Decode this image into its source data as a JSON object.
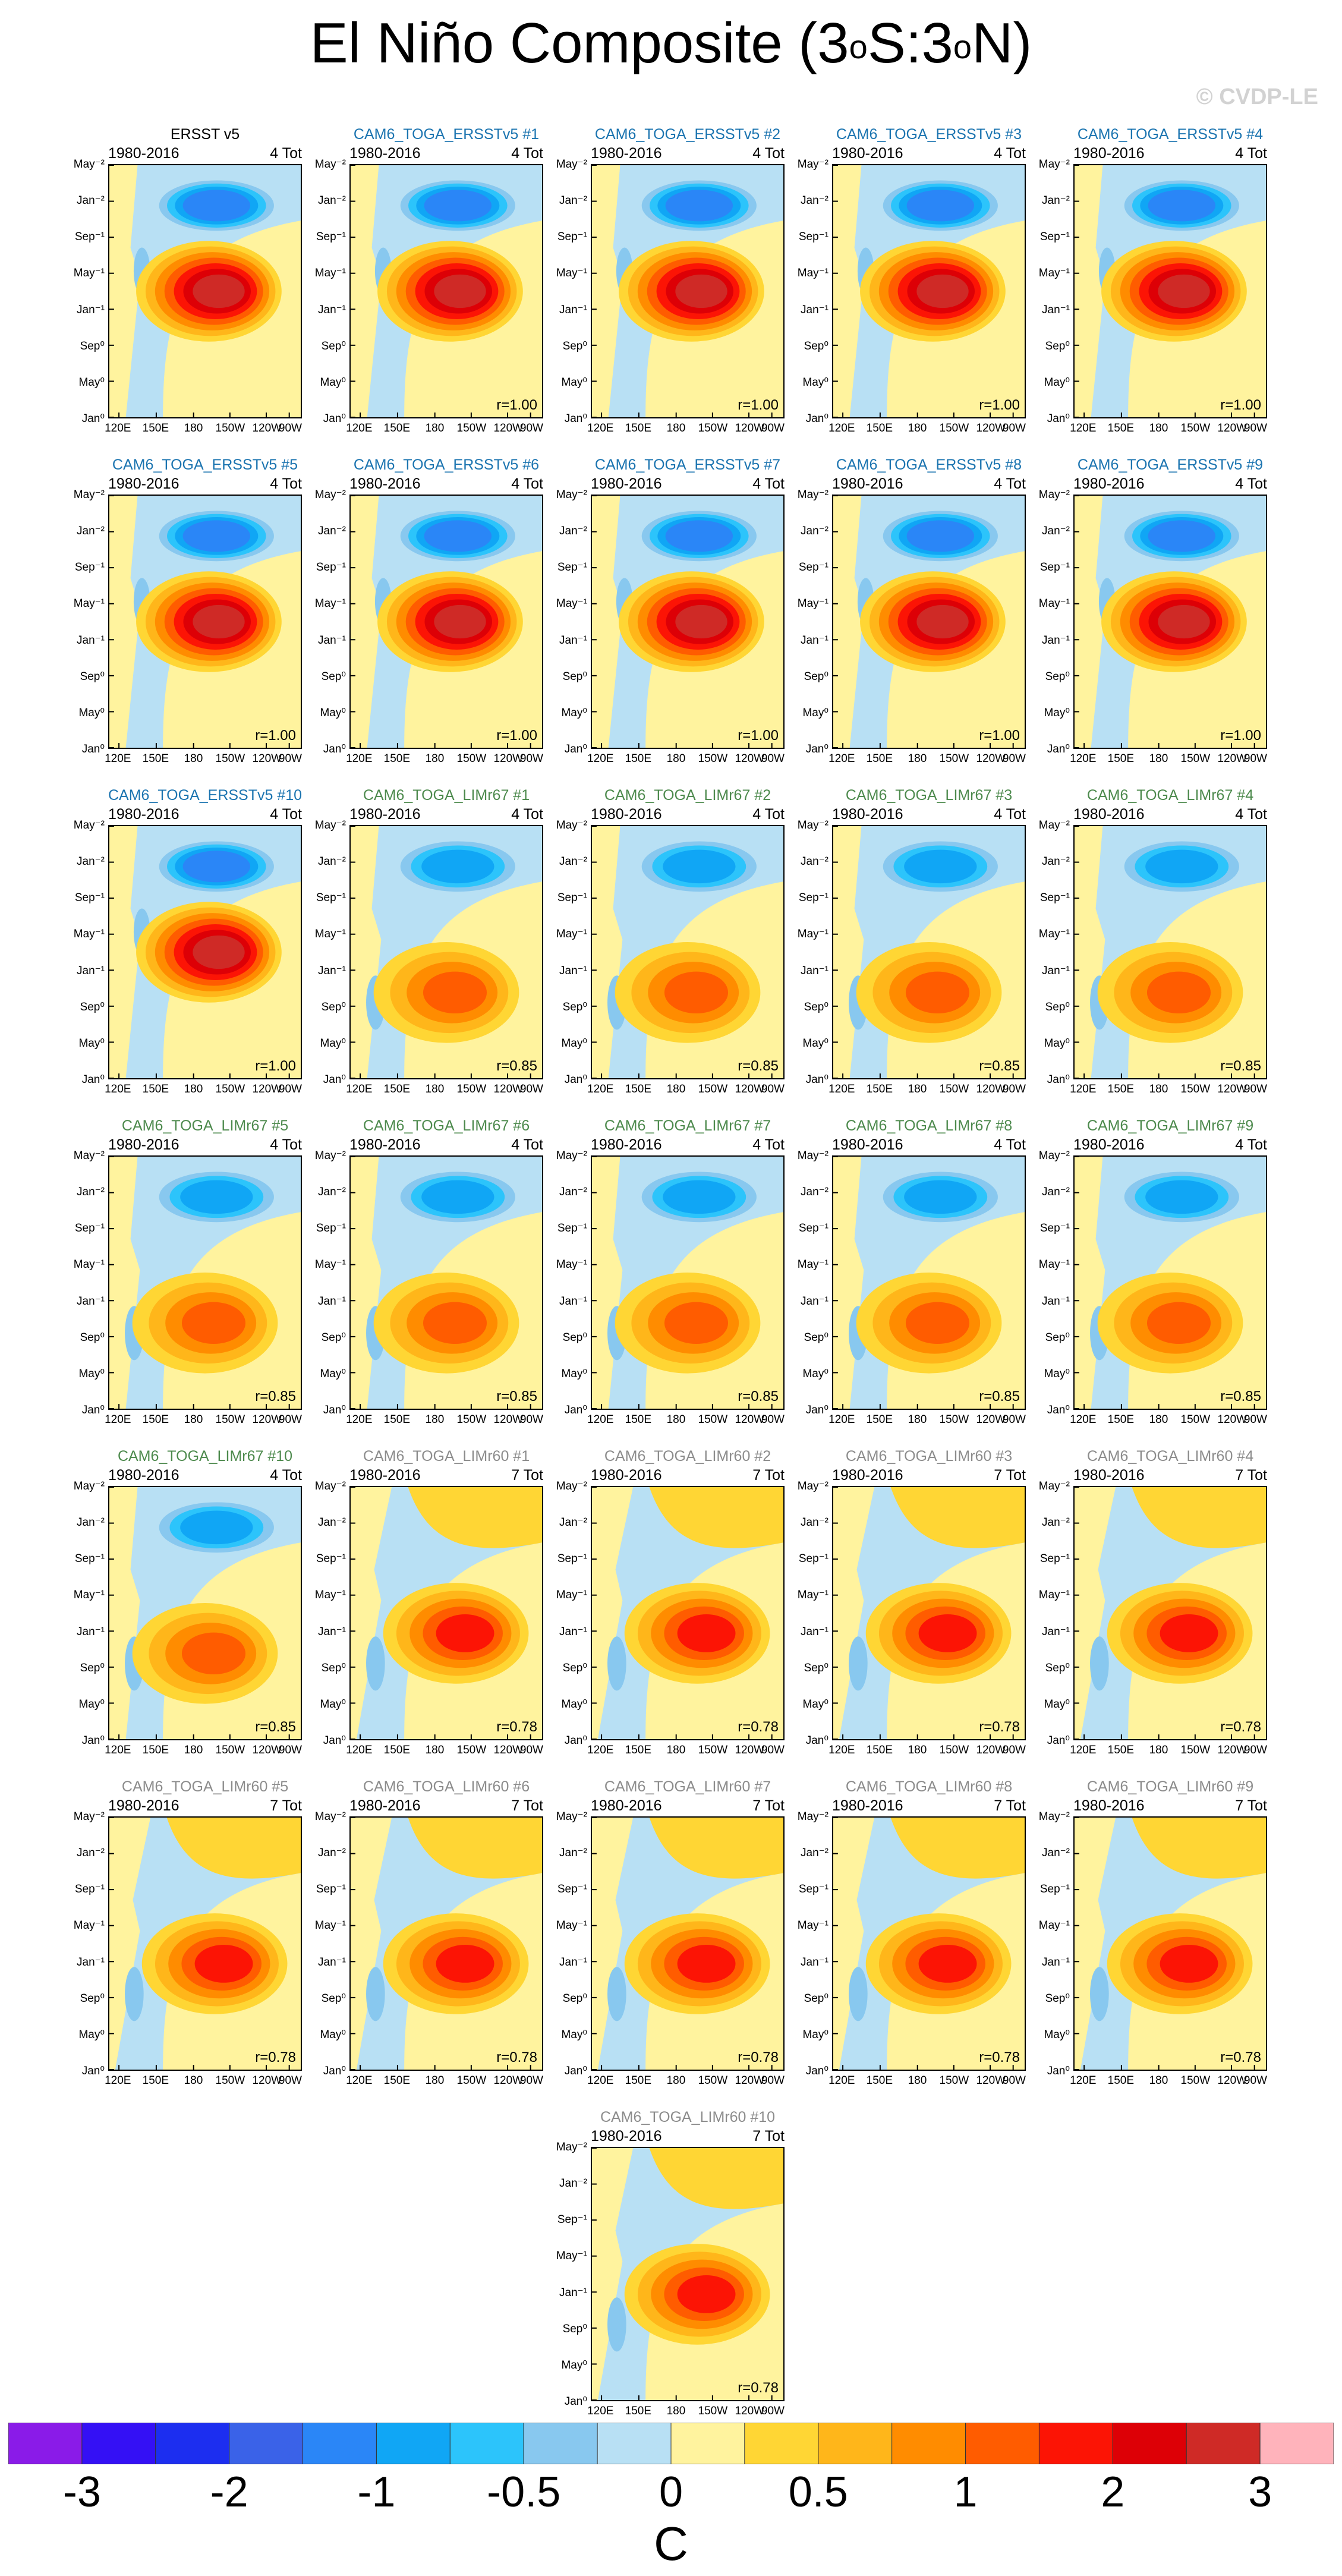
{
  "figure": {
    "title_main": "El Niño Composite (3",
    "title_sup1": "o",
    "title_mid": "S:3",
    "title_sup2": "o",
    "title_end": "N)",
    "watermark": "© CVDP-LE"
  },
  "chart_data": {
    "type": "heatmap",
    "description_axes": "longitude-time Hovmoller composite",
    "x_tick_labels": [
      "120E",
      "150E",
      "180",
      "150W",
      "120W",
      "90W"
    ],
    "x_tick_values_deg_east": [
      120,
      150,
      180,
      210,
      240,
      270
    ],
    "xlim_deg_east": [
      120,
      280
    ],
    "y_tick_labels": [
      "May⁻²",
      "Jan⁻²",
      "Sep⁻¹",
      "May⁻¹",
      "Jan⁻¹",
      "Sep⁰",
      "May⁰",
      "Jan⁰"
    ],
    "colorbar": {
      "unit": "C",
      "labels": [
        "-3",
        "-2",
        "-1",
        "-0.5",
        "0",
        "0.5",
        "1",
        "2",
        "3"
      ],
      "colors": [
        "#8a1be8",
        "#3410f5",
        "#1c2ef0",
        "#3a62e8",
        "#2a86f7",
        "#10a6f5",
        "#2cc4fb",
        "#88c8ef",
        "#b8e0f4",
        "#fff39e",
        "#ffd634",
        "#ffb61a",
        "#ff8c00",
        "#ff5c00",
        "#fc1405",
        "#dd0006",
        "#cf2a26",
        "#ffb3bb"
      ]
    },
    "panels": [
      {
        "title": "ERSST v5",
        "years": "1980-2016",
        "tot": "4 Tot",
        "r": "",
        "group": "obs",
        "title_color": "#000000"
      },
      {
        "title": "CAM6_TOGA_ERSSTv5 #1",
        "years": "1980-2016",
        "tot": "4 Tot",
        "r": "r=1.00",
        "group": "ersst",
        "title_color": "#1b74b0"
      },
      {
        "title": "CAM6_TOGA_ERSSTv5 #2",
        "years": "1980-2016",
        "tot": "4 Tot",
        "r": "r=1.00",
        "group": "ersst",
        "title_color": "#1b74b0"
      },
      {
        "title": "CAM6_TOGA_ERSSTv5 #3",
        "years": "1980-2016",
        "tot": "4 Tot",
        "r": "r=1.00",
        "group": "ersst",
        "title_color": "#1b74b0"
      },
      {
        "title": "CAM6_TOGA_ERSSTv5 #4",
        "years": "1980-2016",
        "tot": "4 Tot",
        "r": "r=1.00",
        "group": "ersst",
        "title_color": "#1b74b0"
      },
      {
        "title": "CAM6_TOGA_ERSSTv5 #5",
        "years": "1980-2016",
        "tot": "4 Tot",
        "r": "r=1.00",
        "group": "ersst",
        "title_color": "#1b74b0"
      },
      {
        "title": "CAM6_TOGA_ERSSTv5 #6",
        "years": "1980-2016",
        "tot": "4 Tot",
        "r": "r=1.00",
        "group": "ersst",
        "title_color": "#1b74b0"
      },
      {
        "title": "CAM6_TOGA_ERSSTv5 #7",
        "years": "1980-2016",
        "tot": "4 Tot",
        "r": "r=1.00",
        "group": "ersst",
        "title_color": "#1b74b0"
      },
      {
        "title": "CAM6_TOGA_ERSSTv5 #8",
        "years": "1980-2016",
        "tot": "4 Tot",
        "r": "r=1.00",
        "group": "ersst",
        "title_color": "#1b74b0"
      },
      {
        "title": "CAM6_TOGA_ERSSTv5 #9",
        "years": "1980-2016",
        "tot": "4 Tot",
        "r": "r=1.00",
        "group": "ersst",
        "title_color": "#1b74b0"
      },
      {
        "title": "CAM6_TOGA_ERSSTv5 #10",
        "years": "1980-2016",
        "tot": "4 Tot",
        "r": "r=1.00",
        "group": "ersst",
        "title_color": "#1b74b0"
      },
      {
        "title": "CAM6_TOGA_LIMr67 #1",
        "years": "1980-2016",
        "tot": "4 Tot",
        "r": "r=0.85",
        "group": "lim67",
        "title_color": "#4d8a4d"
      },
      {
        "title": "CAM6_TOGA_LIMr67 #2",
        "years": "1980-2016",
        "tot": "4 Tot",
        "r": "r=0.85",
        "group": "lim67",
        "title_color": "#4d8a4d"
      },
      {
        "title": "CAM6_TOGA_LIMr67 #3",
        "years": "1980-2016",
        "tot": "4 Tot",
        "r": "r=0.85",
        "group": "lim67",
        "title_color": "#4d8a4d"
      },
      {
        "title": "CAM6_TOGA_LIMr67 #4",
        "years": "1980-2016",
        "tot": "4 Tot",
        "r": "r=0.85",
        "group": "lim67",
        "title_color": "#4d8a4d"
      },
      {
        "title": "CAM6_TOGA_LIMr67 #5",
        "years": "1980-2016",
        "tot": "4 Tot",
        "r": "r=0.85",
        "group": "lim67",
        "title_color": "#4d8a4d"
      },
      {
        "title": "CAM6_TOGA_LIMr67 #6",
        "years": "1980-2016",
        "tot": "4 Tot",
        "r": "r=0.85",
        "group": "lim67",
        "title_color": "#4d8a4d"
      },
      {
        "title": "CAM6_TOGA_LIMr67 #7",
        "years": "1980-2016",
        "tot": "4 Tot",
        "r": "r=0.85",
        "group": "lim67",
        "title_color": "#4d8a4d"
      },
      {
        "title": "CAM6_TOGA_LIMr67 #8",
        "years": "1980-2016",
        "tot": "4 Tot",
        "r": "r=0.85",
        "group": "lim67",
        "title_color": "#4d8a4d"
      },
      {
        "title": "CAM6_TOGA_LIMr67 #9",
        "years": "1980-2016",
        "tot": "4 Tot",
        "r": "r=0.85",
        "group": "lim67",
        "title_color": "#4d8a4d"
      },
      {
        "title": "CAM6_TOGA_LIMr67 #10",
        "years": "1980-2016",
        "tot": "4 Tot",
        "r": "r=0.85",
        "group": "lim67",
        "title_color": "#4d8a4d"
      },
      {
        "title": "CAM6_TOGA_LIMr60 #1",
        "years": "1980-2016",
        "tot": "7 Tot",
        "r": "r=0.78",
        "group": "lim60",
        "title_color": "#8c8c8c"
      },
      {
        "title": "CAM6_TOGA_LIMr60 #2",
        "years": "1980-2016",
        "tot": "7 Tot",
        "r": "r=0.78",
        "group": "lim60",
        "title_color": "#8c8c8c"
      },
      {
        "title": "CAM6_TOGA_LIMr60 #3",
        "years": "1980-2016",
        "tot": "7 Tot",
        "r": "r=0.78",
        "group": "lim60",
        "title_color": "#8c8c8c"
      },
      {
        "title": "CAM6_TOGA_LIMr60 #4",
        "years": "1980-2016",
        "tot": "7 Tot",
        "r": "r=0.78",
        "group": "lim60",
        "title_color": "#8c8c8c"
      },
      {
        "title": "CAM6_TOGA_LIMr60 #5",
        "years": "1980-2016",
        "tot": "7 Tot",
        "r": "r=0.78",
        "group": "lim60",
        "title_color": "#8c8c8c"
      },
      {
        "title": "CAM6_TOGA_LIMr60 #6",
        "years": "1980-2016",
        "tot": "7 Tot",
        "r": "r=0.78",
        "group": "lim60",
        "title_color": "#8c8c8c"
      },
      {
        "title": "CAM6_TOGA_LIMr60 #7",
        "years": "1980-2016",
        "tot": "7 Tot",
        "r": "r=0.78",
        "group": "lim60",
        "title_color": "#8c8c8c"
      },
      {
        "title": "CAM6_TOGA_LIMr60 #8",
        "years": "1980-2016",
        "tot": "7 Tot",
        "r": "r=0.78",
        "group": "lim60",
        "title_color": "#8c8c8c"
      },
      {
        "title": "CAM6_TOGA_LIMr60 #9",
        "years": "1980-2016",
        "tot": "7 Tot",
        "r": "r=0.78",
        "group": "lim60",
        "title_color": "#8c8c8c"
      },
      {
        "title": "CAM6_TOGA_LIMr60 #10",
        "years": "1980-2016",
        "tot": "7 Tot",
        "r": "r=0.78",
        "group": "lim60",
        "title_color": "#8c8c8c"
      }
    ]
  }
}
